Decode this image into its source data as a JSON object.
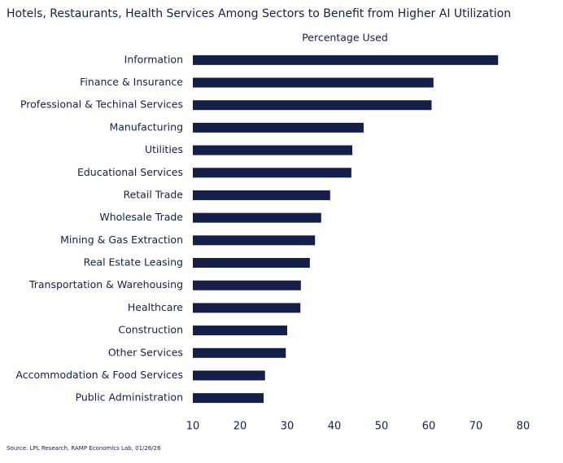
{
  "chart_data": {
    "type": "bar",
    "orientation": "horizontal",
    "title": "Hotels, Restaurants, Health Services Among Sectors to Benefit from Higher AI Utilization",
    "subtitle": "Percentage Used",
    "source": "Source: LPL Research, RAMP Economics Lab, 01/26/26",
    "categories": [
      "Information",
      "Finance & Insurance",
      "Professional & Techinal Services",
      "Manufacturing",
      "Utilities",
      "Educational Services",
      "Retail Trade",
      "Wholesale Trade",
      "Mining & Gas Extraction",
      "Real Estate Leasing",
      "Transportation & Warehousing",
      "Healthcare",
      "Construction",
      "Other Services",
      "Accommodation & Food Services",
      "Public Administration"
    ],
    "values": [
      74.7,
      61,
      60.6,
      46.2,
      43.8,
      43.6,
      39.1,
      37.2,
      35.9,
      34.8,
      32.9,
      32.8,
      30,
      29.7,
      25.3,
      25
    ],
    "color": "#14204a",
    "xlim": [
      10,
      80
    ],
    "xticks": [
      10,
      20,
      30,
      40,
      50,
      60,
      70,
      80
    ],
    "grid": false
  }
}
